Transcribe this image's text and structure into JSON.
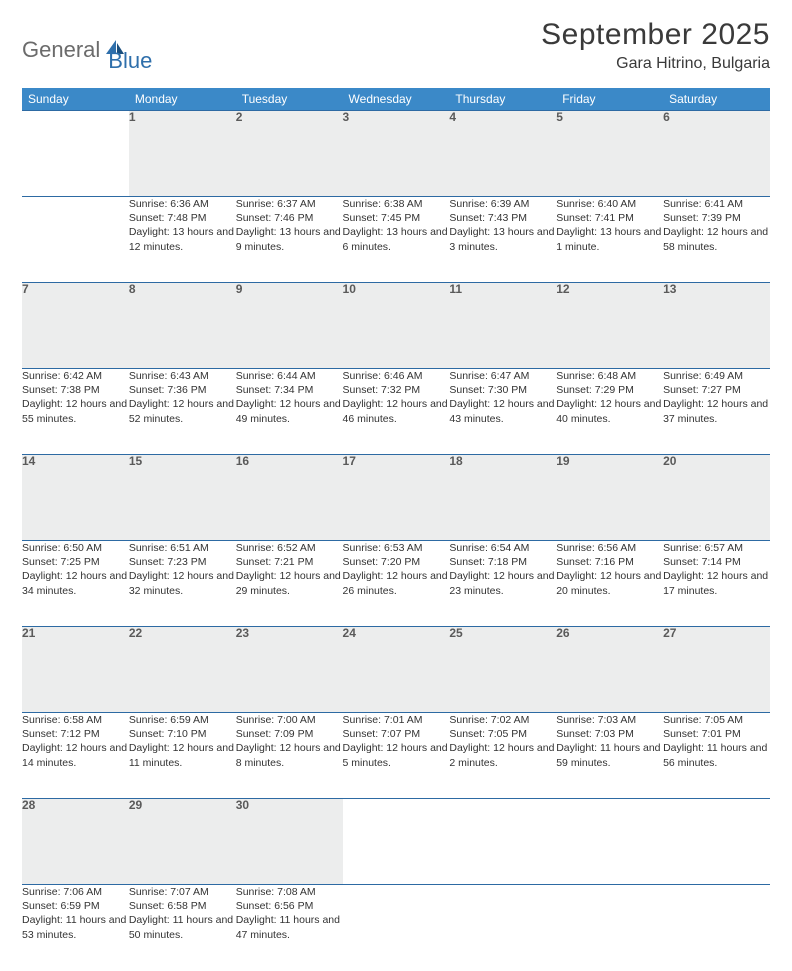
{
  "brand": {
    "part1": "General",
    "part2": "Blue"
  },
  "title": "September 2025",
  "location": "Gara Hitrino, Bulgaria",
  "colors": {
    "header_blue": "#3b89c8",
    "row_divider": "#2d6aa3",
    "daynum_bg": "#eceded",
    "text": "#333333",
    "logo_gray": "#6b6b6b",
    "logo_blue": "#2f6fab"
  },
  "weekdays": [
    "Sunday",
    "Monday",
    "Tuesday",
    "Wednesday",
    "Thursday",
    "Friday",
    "Saturday"
  ],
  "start_offset": 1,
  "days": [
    {
      "n": 1,
      "sunrise": "Sunrise: 6:36 AM",
      "sunset": "Sunset: 7:48 PM",
      "daylight": "Daylight: 13 hours and 12 minutes."
    },
    {
      "n": 2,
      "sunrise": "Sunrise: 6:37 AM",
      "sunset": "Sunset: 7:46 PM",
      "daylight": "Daylight: 13 hours and 9 minutes."
    },
    {
      "n": 3,
      "sunrise": "Sunrise: 6:38 AM",
      "sunset": "Sunset: 7:45 PM",
      "daylight": "Daylight: 13 hours and 6 minutes."
    },
    {
      "n": 4,
      "sunrise": "Sunrise: 6:39 AM",
      "sunset": "Sunset: 7:43 PM",
      "daylight": "Daylight: 13 hours and 3 minutes."
    },
    {
      "n": 5,
      "sunrise": "Sunrise: 6:40 AM",
      "sunset": "Sunset: 7:41 PM",
      "daylight": "Daylight: 13 hours and 1 minute."
    },
    {
      "n": 6,
      "sunrise": "Sunrise: 6:41 AM",
      "sunset": "Sunset: 7:39 PM",
      "daylight": "Daylight: 12 hours and 58 minutes."
    },
    {
      "n": 7,
      "sunrise": "Sunrise: 6:42 AM",
      "sunset": "Sunset: 7:38 PM",
      "daylight": "Daylight: 12 hours and 55 minutes."
    },
    {
      "n": 8,
      "sunrise": "Sunrise: 6:43 AM",
      "sunset": "Sunset: 7:36 PM",
      "daylight": "Daylight: 12 hours and 52 minutes."
    },
    {
      "n": 9,
      "sunrise": "Sunrise: 6:44 AM",
      "sunset": "Sunset: 7:34 PM",
      "daylight": "Daylight: 12 hours and 49 minutes."
    },
    {
      "n": 10,
      "sunrise": "Sunrise: 6:46 AM",
      "sunset": "Sunset: 7:32 PM",
      "daylight": "Daylight: 12 hours and 46 minutes."
    },
    {
      "n": 11,
      "sunrise": "Sunrise: 6:47 AM",
      "sunset": "Sunset: 7:30 PM",
      "daylight": "Daylight: 12 hours and 43 minutes."
    },
    {
      "n": 12,
      "sunrise": "Sunrise: 6:48 AM",
      "sunset": "Sunset: 7:29 PM",
      "daylight": "Daylight: 12 hours and 40 minutes."
    },
    {
      "n": 13,
      "sunrise": "Sunrise: 6:49 AM",
      "sunset": "Sunset: 7:27 PM",
      "daylight": "Daylight: 12 hours and 37 minutes."
    },
    {
      "n": 14,
      "sunrise": "Sunrise: 6:50 AM",
      "sunset": "Sunset: 7:25 PM",
      "daylight": "Daylight: 12 hours and 34 minutes."
    },
    {
      "n": 15,
      "sunrise": "Sunrise: 6:51 AM",
      "sunset": "Sunset: 7:23 PM",
      "daylight": "Daylight: 12 hours and 32 minutes."
    },
    {
      "n": 16,
      "sunrise": "Sunrise: 6:52 AM",
      "sunset": "Sunset: 7:21 PM",
      "daylight": "Daylight: 12 hours and 29 minutes."
    },
    {
      "n": 17,
      "sunrise": "Sunrise: 6:53 AM",
      "sunset": "Sunset: 7:20 PM",
      "daylight": "Daylight: 12 hours and 26 minutes."
    },
    {
      "n": 18,
      "sunrise": "Sunrise: 6:54 AM",
      "sunset": "Sunset: 7:18 PM",
      "daylight": "Daylight: 12 hours and 23 minutes."
    },
    {
      "n": 19,
      "sunrise": "Sunrise: 6:56 AM",
      "sunset": "Sunset: 7:16 PM",
      "daylight": "Daylight: 12 hours and 20 minutes."
    },
    {
      "n": 20,
      "sunrise": "Sunrise: 6:57 AM",
      "sunset": "Sunset: 7:14 PM",
      "daylight": "Daylight: 12 hours and 17 minutes."
    },
    {
      "n": 21,
      "sunrise": "Sunrise: 6:58 AM",
      "sunset": "Sunset: 7:12 PM",
      "daylight": "Daylight: 12 hours and 14 minutes."
    },
    {
      "n": 22,
      "sunrise": "Sunrise: 6:59 AM",
      "sunset": "Sunset: 7:10 PM",
      "daylight": "Daylight: 12 hours and 11 minutes."
    },
    {
      "n": 23,
      "sunrise": "Sunrise: 7:00 AM",
      "sunset": "Sunset: 7:09 PM",
      "daylight": "Daylight: 12 hours and 8 minutes."
    },
    {
      "n": 24,
      "sunrise": "Sunrise: 7:01 AM",
      "sunset": "Sunset: 7:07 PM",
      "daylight": "Daylight: 12 hours and 5 minutes."
    },
    {
      "n": 25,
      "sunrise": "Sunrise: 7:02 AM",
      "sunset": "Sunset: 7:05 PM",
      "daylight": "Daylight: 12 hours and 2 minutes."
    },
    {
      "n": 26,
      "sunrise": "Sunrise: 7:03 AM",
      "sunset": "Sunset: 7:03 PM",
      "daylight": "Daylight: 11 hours and 59 minutes."
    },
    {
      "n": 27,
      "sunrise": "Sunrise: 7:05 AM",
      "sunset": "Sunset: 7:01 PM",
      "daylight": "Daylight: 11 hours and 56 minutes."
    },
    {
      "n": 28,
      "sunrise": "Sunrise: 7:06 AM",
      "sunset": "Sunset: 6:59 PM",
      "daylight": "Daylight: 11 hours and 53 minutes."
    },
    {
      "n": 29,
      "sunrise": "Sunrise: 7:07 AM",
      "sunset": "Sunset: 6:58 PM",
      "daylight": "Daylight: 11 hours and 50 minutes."
    },
    {
      "n": 30,
      "sunrise": "Sunrise: 7:08 AM",
      "sunset": "Sunset: 6:56 PM",
      "daylight": "Daylight: 11 hours and 47 minutes."
    }
  ]
}
